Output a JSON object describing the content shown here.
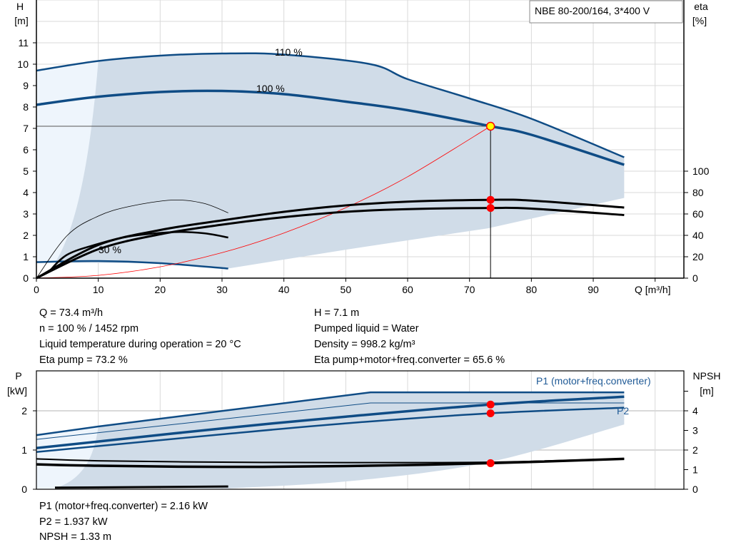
{
  "chart_data": [
    {
      "type": "line",
      "title": "NBE 80-200/164, 3*400 V",
      "xlabel": "Q [m³/h]",
      "ylabel": "H\n[m]",
      "y2label": "eta\n[%]",
      "xlim": [
        0,
        105
      ],
      "ylim": [
        0,
        13
      ],
      "y2lim": [
        0,
        100
      ],
      "xticks": [
        0,
        10,
        20,
        30,
        40,
        50,
        60,
        70,
        80,
        90
      ],
      "yticks": [
        0,
        1,
        2,
        3,
        4,
        5,
        6,
        7,
        8,
        9,
        10,
        11
      ],
      "y2ticks": [
        0,
        20,
        40,
        60,
        80,
        100
      ],
      "grid": true,
      "colors": {
        "curve": "#0f4c85",
        "range": "#d0dce8",
        "range_light": "#eef5fc",
        "duty": "#ff0000",
        "duty_fill": "#ffff00",
        "grid": "#d9d9d9"
      },
      "annotations": [
        "110 %",
        "100 %",
        "30 %"
      ],
      "series": [
        {
          "name": "110 %",
          "axis": "H",
          "x": [
            0,
            10,
            20,
            30,
            40,
            54,
            60,
            70,
            80,
            95
          ],
          "y": [
            9.7,
            10.15,
            10.4,
            10.5,
            10.45,
            10.0,
            9.3,
            8.4,
            7.45,
            5.65
          ]
        },
        {
          "name": "100 %",
          "axis": "H",
          "x": [
            0,
            9,
            20,
            30,
            40,
            50,
            60,
            73.4,
            80,
            95
          ],
          "y": [
            8.1,
            8.45,
            8.7,
            8.75,
            8.6,
            8.25,
            7.85,
            7.1,
            6.7,
            5.3
          ]
        },
        {
          "name": "30 %",
          "axis": "H",
          "x": [
            0,
            10,
            20,
            31
          ],
          "y": [
            0.75,
            0.8,
            0.7,
            0.45
          ]
        },
        {
          "axis": "H",
          "x": [
            0,
            10,
            20,
            30,
            40,
            50,
            60,
            73.4
          ],
          "y": [
            0,
            0.13,
            0.53,
            1.19,
            2.11,
            3.29,
            4.74,
            7.1
          ]
        },
        {
          "axis": "eta",
          "x": [
            0,
            10,
            20,
            30,
            40,
            50,
            60,
            73.4,
            80,
            95
          ],
          "y": [
            0,
            31,
            45,
            54,
            62,
            68,
            71.5,
            73.2,
            72.5,
            66
          ]
        },
        {
          "axis": "eta",
          "x": [
            0,
            10,
            20,
            30,
            40,
            50,
            60,
            73.4,
            80,
            95
          ],
          "y": [
            0,
            27,
            41,
            50,
            57,
            62,
            64.5,
            65.6,
            65,
            59
          ]
        },
        {
          "axis": "eta",
          "x": [
            0,
            5,
            10,
            15,
            22,
            27,
            31
          ],
          "y": [
            0,
            40,
            58,
            67,
            73,
            70,
            61
          ]
        },
        {
          "axis": "eta",
          "x": [
            2,
            5,
            10,
            15,
            22,
            27,
            31
          ],
          "y": [
            6,
            22,
            32,
            39,
            43,
            42,
            38
          ]
        }
      ],
      "range_area": {
        "upper_x": [
          10,
          20,
          30,
          40,
          54,
          60,
          70,
          80,
          95
        ],
        "upper_y": [
          10.15,
          10.4,
          10.5,
          10.45,
          10.0,
          9.3,
          8.4,
          7.45,
          5.65
        ],
        "lower_x": [
          95,
          73,
          50,
          31
        ],
        "lower_y": [
          3.75,
          2.33,
          1.33,
          0.45
        ]
      },
      "duty_point": {
        "Q": 73.4,
        "H": 7.1,
        "eta_pump": 73.2,
        "eta_total": 65.6
      }
    },
    {
      "type": "line",
      "ylabel": "P\n[kW]",
      "y2label": "NPSH\n[m]",
      "xlim": [
        0,
        105
      ],
      "ylim": [
        0,
        3
      ],
      "y2lim": [
        0,
        6
      ],
      "yticks": [
        0,
        1,
        2
      ],
      "y2ticks": [
        0,
        1,
        2,
        3,
        4,
        5
      ],
      "y2ticklabels": [
        "0",
        "1",
        "2",
        "3",
        "4",
        ""
      ],
      "grid": true,
      "legend": [
        "P1 (motor+freq.converter)",
        "P2"
      ],
      "series": [
        {
          "axis": "P",
          "x": [
            0,
            10,
            54,
            95
          ],
          "y": [
            1.38,
            1.6,
            2.47,
            2.47
          ]
        },
        {
          "name": "P1 (motor+freq.converter)",
          "axis": "P",
          "x": [
            0,
            9,
            30,
            50,
            73.4,
            95
          ],
          "y": [
            1.05,
            1.2,
            1.55,
            1.85,
            2.16,
            2.36
          ]
        },
        {
          "axis": "P",
          "x": [
            0,
            54,
            95
          ],
          "y": [
            1.27,
            2.2,
            2.2
          ]
        },
        {
          "name": "P2",
          "axis": "P",
          "x": [
            0,
            10,
            30,
            50,
            73.4,
            95
          ],
          "y": [
            0.95,
            1.1,
            1.4,
            1.68,
            1.937,
            2.08
          ]
        },
        {
          "axis": "NPSH",
          "x": [
            0,
            10,
            30,
            50,
            73.4,
            95
          ],
          "y": [
            1.55,
            1.45,
            1.38,
            1.36,
            1.38,
            1.56
          ]
        },
        {
          "axis": "NPSH",
          "x": [
            0,
            10,
            30,
            50,
            73.4,
            95
          ],
          "y": [
            1.27,
            1.2,
            1.14,
            1.18,
            1.33,
            1.55
          ]
        },
        {
          "axis": "P",
          "x": [
            3,
            31
          ],
          "y": [
            0.04,
            0.07
          ]
        }
      ],
      "range_area": {
        "upper_x": [
          10,
          54,
          95
        ],
        "upper_y": [
          1.6,
          2.47,
          2.47
        ],
        "lower_x": [
          95,
          73.4,
          51.5,
          31
        ],
        "lower_y": [
          1.65,
          0.7,
          0.22,
          0.02
        ]
      },
      "duty_point": {
        "Q": 73.4,
        "P1": 2.16,
        "P2": 1.937,
        "NPSH": 1.33
      }
    }
  ],
  "info": {
    "q": "Q = 73.4 m³/h",
    "n": "n = 100 % / 1452 rpm",
    "temp": "Liquid temperature during operation = 20 °C",
    "eta_pump": "Eta pump = 73.2 %",
    "h": "H = 7.1 m",
    "liquid": "Pumped liquid = Water",
    "density": "Density = 998.2 kg/m³",
    "eta_total": "Eta pump+motor+freq.converter = 65.6 %",
    "p1": "P1 (motor+freq.converter) = 2.16 kW",
    "p2": "P2 = 1.937 kW",
    "npsh": "NPSH = 1.33 m"
  }
}
